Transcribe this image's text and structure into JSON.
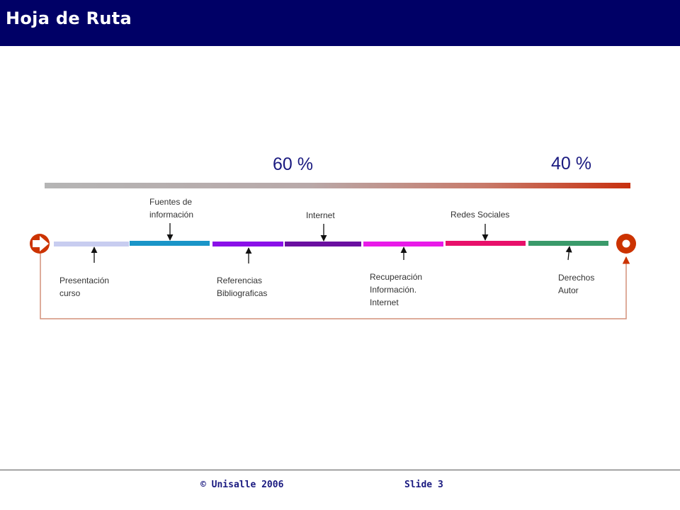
{
  "header": {
    "title": "Hoja de Ruta",
    "background": "#000066"
  },
  "percent_labels": [
    "60 %",
    "40 %"
  ],
  "start_icon": "arrow-start-icon",
  "end_icon": "target-end-icon",
  "accent_color": "#cc3300",
  "steps": [
    {
      "label": "Presentación\ncurso",
      "color": "#c8cdf0",
      "position": "below"
    },
    {
      "label": "Fuentes de\ninformación",
      "color": "#1a95c8",
      "position": "above"
    },
    {
      "label": "Referencias\nBibliograficas",
      "color": "#8a10e8",
      "position": "below"
    },
    {
      "label": "Internet",
      "color": "#6a0fa0",
      "position": "above"
    },
    {
      "label": "Recuperación\nInformación.\nInternet",
      "color": "#e81ae8",
      "position": "below"
    },
    {
      "label": "Redes Sociales",
      "color": "#e8106a",
      "position": "above"
    },
    {
      "label": "Derechos\nAutor",
      "color": "#3a9a6a",
      "position": "below"
    }
  ],
  "footer": {
    "copyright": "© Unisalle 2006",
    "slide": "Slide 3"
  }
}
